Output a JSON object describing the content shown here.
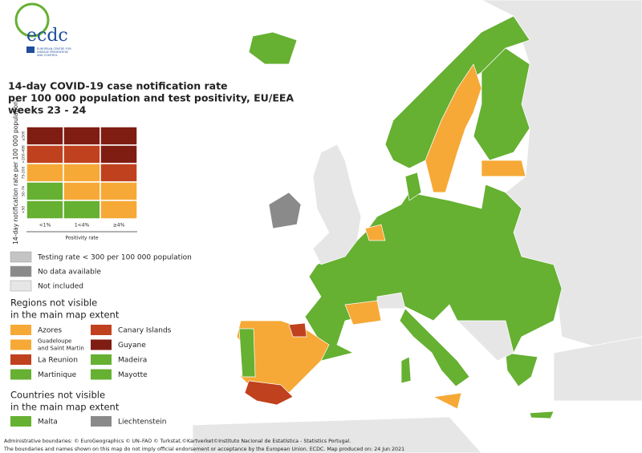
{
  "header": {
    "logo": "ecdc",
    "logo_subtitle": [
      "EUROPEAN CENTRE FOR",
      "DISEASE PREVENTION",
      "AND CONTROL"
    ]
  },
  "title": [
    "14-day COVID-19 case notification rate",
    "per 100 000 population and test positivity, EU/EEA",
    "weeks 23 - 24"
  ],
  "matrix": {
    "y_label": "14-day notification rate per 100 000 population",
    "rows": [
      "≥500",
      ">200-499",
      "75-200",
      "50-74",
      "<50"
    ],
    "columns": [
      "<1%",
      "1<4%",
      "≥4%"
    ],
    "x_label": "Positivity rate",
    "colors": [
      [
        "#7f1d12",
        "#7f1d12",
        "#7f1d12"
      ],
      [
        "#c0411e",
        "#c0411e",
        "#7f1d12"
      ],
      [
        "#f6a936",
        "#f6a936",
        "#c0411e"
      ],
      [
        "#66b032",
        "#f6a936",
        "#f6a936"
      ],
      [
        "#66b032",
        "#66b032",
        "#f6a936"
      ]
    ]
  },
  "legend": [
    {
      "label": "Testing rate < 300 per 100 000 population",
      "color": "#c4c4c4"
    },
    {
      "label": "No data available",
      "color": "#8a8a8a"
    },
    {
      "label": "Not included",
      "color": "#e6e6e6"
    }
  ],
  "regions": {
    "title": [
      "Regions not visible",
      "in the main map extent"
    ],
    "items": [
      {
        "label": "Azores",
        "color": "#f6a936"
      },
      {
        "label": "Canary Islands",
        "color": "#c0411e"
      },
      {
        "label": [
          "Guadeloupe",
          "and Saint Martin"
        ],
        "color": "#f6a936"
      },
      {
        "label": "Guyane",
        "color": "#7f1d12"
      },
      {
        "label": "La Reunion",
        "color": "#c0411e"
      },
      {
        "label": "Madeira",
        "color": "#66b032"
      },
      {
        "label": "Martinique",
        "color": "#66b032"
      },
      {
        "label": "Mayotte",
        "color": "#66b032"
      }
    ]
  },
  "countries": {
    "title": [
      "Countries not visible",
      "in the main map extent"
    ],
    "items": [
      {
        "label": "Malta",
        "color": "#66b032"
      },
      {
        "label": "Liechtenstein",
        "color": "#8a8a8a"
      }
    ]
  },
  "footer": [
    "Administrative boundaries: © EuroGeographics © UN–FAO © Turkstat.©Kartverket©Instituto Nacional de Estatística - Statistics Portugal.",
    "The boundaries and names shown on this map do not imply official endorsement or acceptance by the European Union. ECDC. Map produced on: 24 Jun 2021"
  ]
}
